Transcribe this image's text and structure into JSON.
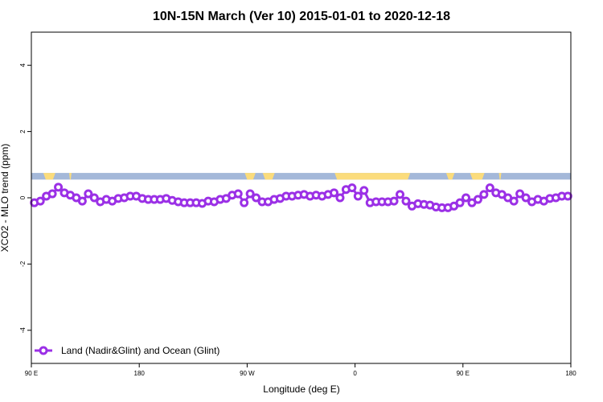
{
  "chart_data": {
    "type": "line",
    "title": "10N-15N March (Ver 10)   2015-01-01 to 2020-12-18",
    "xlabel": "Longitude (deg E)",
    "ylabel": "XCO2 - MLO trend (ppm)",
    "xlim": [
      0,
      45
    ],
    "ylim": [
      -5,
      5
    ],
    "x_ticks": [
      {
        "value": 0,
        "label": "90 E"
      },
      {
        "value": 9,
        "label": "180"
      },
      {
        "value": 18,
        "label": "90 W"
      },
      {
        "value": 27,
        "label": "0"
      },
      {
        "value": 36,
        "label": "90 E"
      },
      {
        "value": 45,
        "label": "180"
      }
    ],
    "y_ticks": [
      -4,
      -2,
      0,
      2,
      4
    ],
    "land_band": {
      "y_range": [
        0.55,
        0.75
      ],
      "ocean_color": "#a4b8d9",
      "land_color": "#fbdc7c",
      "land_segments": [
        [
          1.0,
          2.0
        ],
        [
          3.15,
          3.35
        ],
        [
          17.8,
          18.7
        ],
        [
          19.3,
          20.3
        ],
        [
          25.3,
          31.6
        ],
        [
          34.6,
          35.3
        ],
        [
          36.6,
          37.8
        ],
        [
          39.0,
          39.2
        ]
      ]
    },
    "series": [
      {
        "name": "Land (Nadir&Glint) and Ocean (Glint)",
        "color": "#9b30e6",
        "x": [
          0.25,
          0.75,
          1.25,
          1.75,
          2.25,
          2.75,
          3.25,
          3.75,
          4.25,
          4.75,
          5.25,
          5.75,
          6.25,
          6.75,
          7.25,
          7.75,
          8.25,
          8.75,
          9.25,
          9.75,
          10.25,
          10.75,
          11.25,
          11.75,
          12.25,
          12.75,
          13.25,
          13.75,
          14.25,
          14.75,
          15.25,
          15.75,
          16.25,
          16.75,
          17.25,
          17.75,
          18.25,
          18.75,
          19.25,
          19.75,
          20.25,
          20.75,
          21.25,
          21.75,
          22.25,
          22.75,
          23.25,
          23.75,
          24.25,
          24.75,
          25.25,
          25.75,
          26.25,
          26.75,
          27.25,
          27.75,
          28.25,
          28.75,
          29.25,
          29.75,
          30.25,
          30.75,
          31.25,
          31.75,
          32.25,
          32.75,
          33.25,
          33.75,
          34.25,
          34.75,
          35.25,
          35.75,
          36.25,
          36.75,
          37.25,
          37.75,
          38.25,
          38.75,
          39.25,
          39.75,
          40.25,
          40.75,
          41.25,
          41.75,
          42.25,
          42.75,
          43.25,
          43.75,
          44.25,
          44.75
        ],
        "values": [
          -0.15,
          -0.1,
          0.05,
          0.12,
          0.32,
          0.15,
          0.08,
          0.0,
          -0.1,
          0.12,
          0.0,
          -0.12,
          -0.05,
          -0.1,
          -0.02,
          0.0,
          0.05,
          0.05,
          -0.02,
          -0.05,
          -0.05,
          -0.05,
          -0.02,
          -0.08,
          -0.12,
          -0.15,
          -0.15,
          -0.15,
          -0.17,
          -0.1,
          -0.12,
          -0.05,
          -0.02,
          0.08,
          0.12,
          -0.15,
          0.12,
          0.0,
          -0.12,
          -0.12,
          -0.05,
          -0.02,
          0.05,
          0.05,
          0.08,
          0.1,
          0.05,
          0.08,
          0.05,
          0.1,
          0.15,
          0.0,
          0.25,
          0.3,
          0.05,
          0.22,
          -0.15,
          -0.12,
          -0.12,
          -0.12,
          -0.1,
          0.1,
          -0.1,
          -0.25,
          -0.18,
          -0.2,
          -0.22,
          -0.28,
          -0.3,
          -0.3,
          -0.25,
          -0.15,
          0.0,
          -0.15,
          -0.05,
          0.1,
          0.3,
          0.15,
          0.1,
          0.0,
          -0.1,
          0.12,
          0.0,
          -0.12,
          -0.05,
          -0.1,
          -0.02,
          0.0,
          0.05,
          0.05
        ]
      }
    ],
    "legend_position": "bottom-left",
    "grid": false
  }
}
